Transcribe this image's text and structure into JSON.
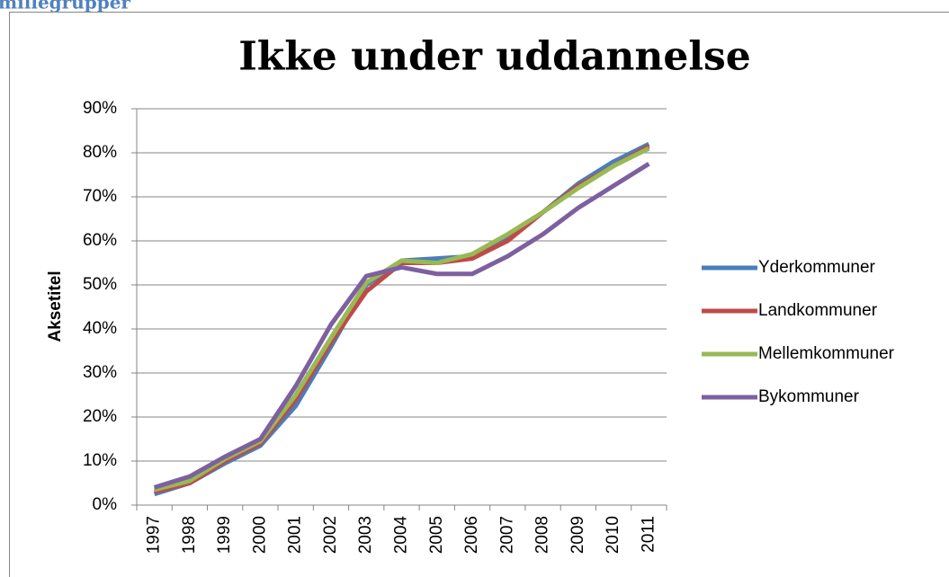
{
  "heading": "millegrupper",
  "chart_data": {
    "type": "line",
    "title": "Ikke under uddannelse",
    "y_label": "Aksetitel",
    "categories": [
      "1997",
      "1998",
      "1999",
      "2000",
      "2001",
      "2002",
      "2003",
      "2004",
      "2005",
      "2006",
      "2007",
      "2008",
      "2009",
      "2010",
      "2011"
    ],
    "series": [
      {
        "name": "Yderkommuner",
        "color": "#4a7ebb",
        "values": [
          2.5,
          5,
          9.5,
          13.5,
          22.5,
          36,
          50,
          55.5,
          56,
          56.5,
          61,
          66.5,
          73,
          78,
          82
        ]
      },
      {
        "name": "Landkommuner",
        "color": "#be4b48",
        "values": [
          3,
          5,
          10,
          14,
          24,
          37,
          48.5,
          55,
          55,
          56,
          60,
          66.5,
          72.5,
          77,
          81.5
        ]
      },
      {
        "name": "Mellemkommuner",
        "color": "#98b954",
        "values": [
          3.5,
          5.5,
          10.5,
          14.5,
          25,
          38,
          50.5,
          55.5,
          55,
          57,
          61.5,
          66.5,
          72,
          77,
          81
        ]
      },
      {
        "name": "Bykommuner",
        "color": "#7d60a0",
        "values": [
          4,
          6.5,
          11,
          15,
          27,
          41,
          52,
          54,
          52.5,
          52.5,
          56.5,
          61.5,
          67.5,
          72.5,
          77.5
        ]
      }
    ],
    "ylim": [
      0,
      90
    ],
    "yticks": [
      {
        "value": 0,
        "label": "0%"
      },
      {
        "value": 10,
        "label": "10%"
      },
      {
        "value": 20,
        "label": "20%"
      },
      {
        "value": 30,
        "label": "30%"
      },
      {
        "value": 40,
        "label": "40%"
      },
      {
        "value": 50,
        "label": "50%"
      },
      {
        "value": 60,
        "label": "60%"
      },
      {
        "value": 70,
        "label": "70%"
      },
      {
        "value": 80,
        "label": "80%"
      },
      {
        "value": 90,
        "label": "90%"
      }
    ],
    "grid": true,
    "legend": "right"
  }
}
